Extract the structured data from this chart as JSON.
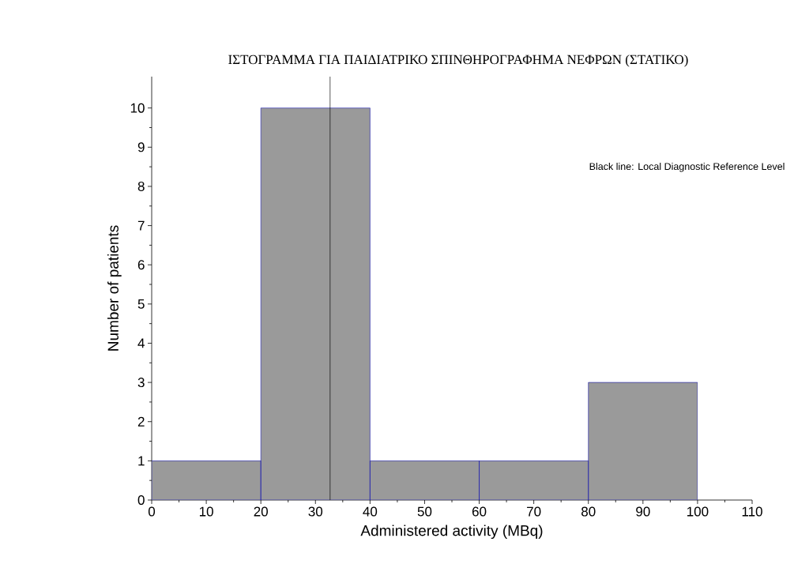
{
  "chart_data": {
    "type": "histogram",
    "title": "ΙΣΤΟΓΡΑΜΜΑ ΓΙΑ ΠΑΙΔΙΑΤΡΙΚΟ ΣΠΙΝΘΗΡΟΓΡΑΦΗΜΑ ΝΕΦΡΩΝ (ΣΤΑΤΙΚΟ)",
    "xlabel": "Administered activity (MBq)",
    "ylabel": "Number of patients",
    "bins": [
      0,
      20,
      40,
      60,
      80,
      100
    ],
    "values": [
      1,
      10,
      1,
      1,
      3
    ],
    "color": "#9a9a9a",
    "xlim": [
      0,
      110
    ],
    "xticks": [
      0,
      10,
      20,
      30,
      40,
      50,
      60,
      70,
      80,
      90,
      100,
      110
    ],
    "ylim": [
      0,
      10.8
    ],
    "yticks": [
      0,
      1,
      2,
      3,
      4,
      5,
      6,
      7,
      8,
      9,
      10
    ],
    "ref_lines": [
      {
        "axis": "x",
        "value": 32.7,
        "color": "#000000"
      }
    ],
    "annotations": [
      "Black line: Local Diagnostic Reference Level"
    ],
    "grid": false
  }
}
